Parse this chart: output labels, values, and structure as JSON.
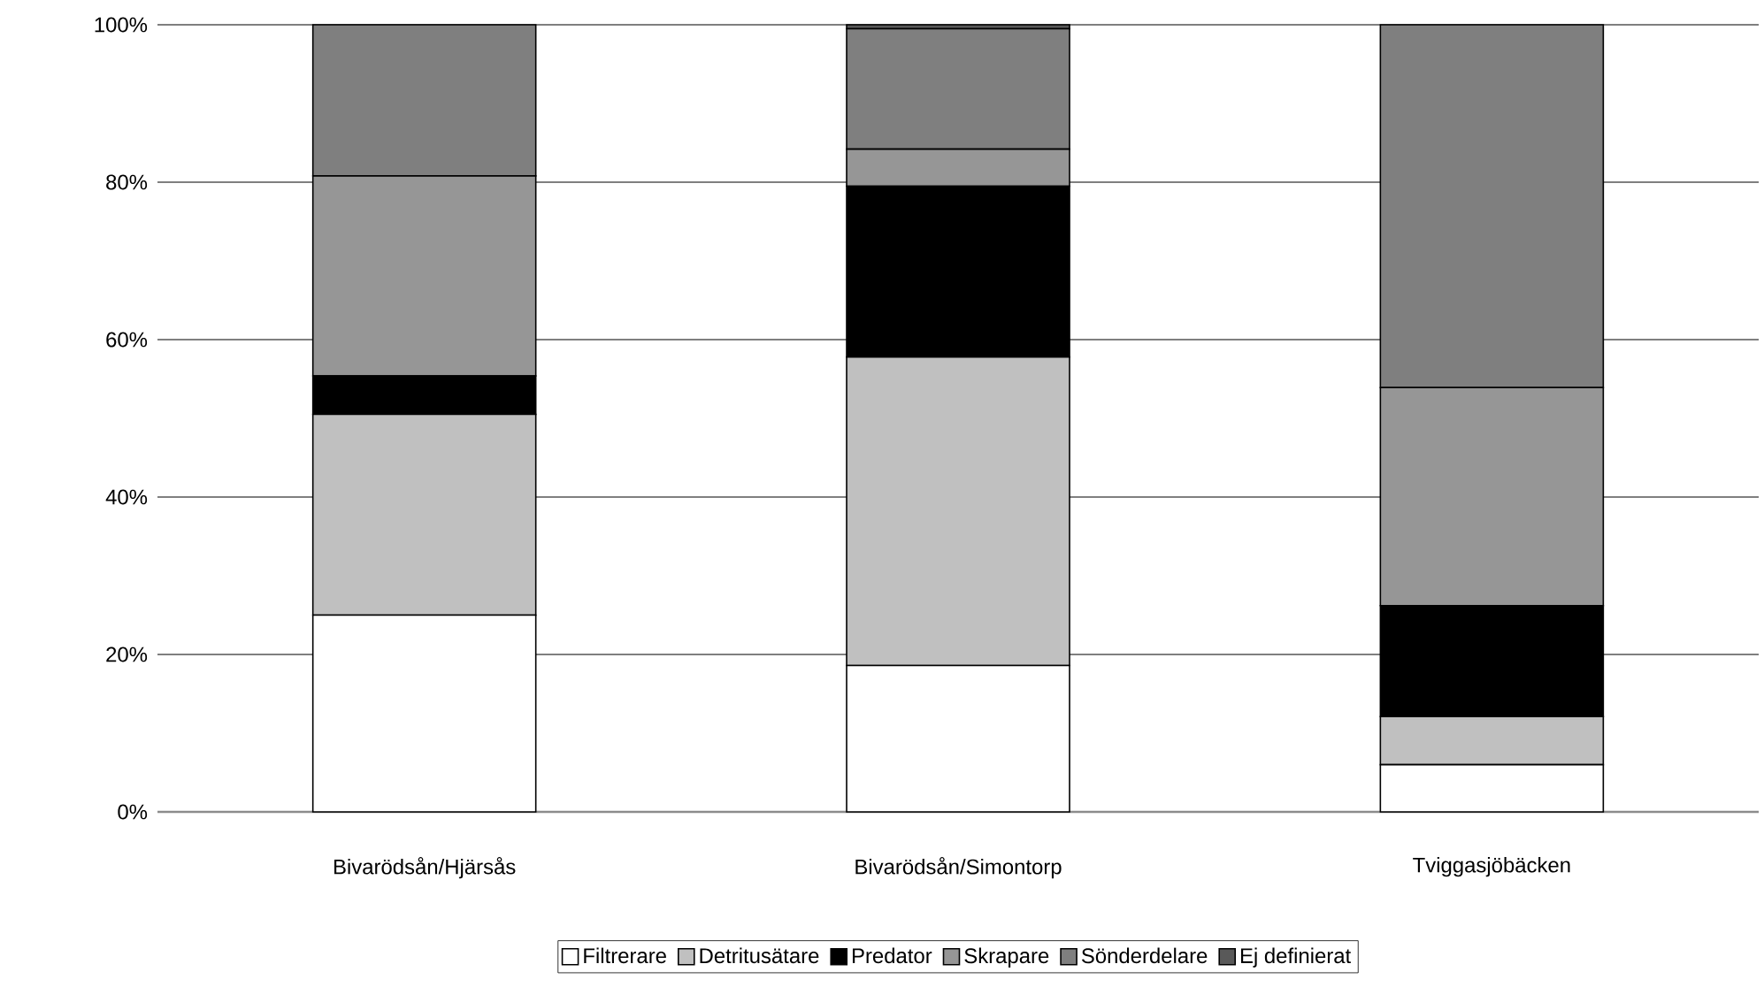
{
  "chart_data": {
    "type": "bar",
    "stacked": true,
    "categories": [
      "Bivarödsån/Hjärsås",
      "Bivarödsån/Simontorp",
      "Tviggasjöbäcken"
    ],
    "series": [
      {
        "name": "Filtrerare",
        "color": "#ffffff",
        "values": [
          25.0,
          18.6,
          6.0
        ]
      },
      {
        "name": "Detritusätare",
        "color": "#c0c0c0",
        "values": [
          25.5,
          39.2,
          6.1
        ]
      },
      {
        "name": "Predator",
        "color": "#000000",
        "values": [
          4.9,
          21.7,
          14.1
        ]
      },
      {
        "name": "Skrapare",
        "color": "#969696",
        "values": [
          25.4,
          4.7,
          27.7
        ]
      },
      {
        "name": "Sönderdelare",
        "color": "#7f7f7f",
        "values": [
          19.2,
          15.3,
          46.1
        ]
      },
      {
        "name": "Ej definierat",
        "color": "#595959",
        "values": [
          0,
          0.5,
          0
        ]
      }
    ],
    "ylim": [
      0,
      100
    ],
    "yticks": [
      {
        "value": 0,
        "label": "0%"
      },
      {
        "value": 20,
        "label": "20%"
      },
      {
        "value": 40,
        "label": "40%"
      },
      {
        "value": 60,
        "label": "60%"
      },
      {
        "value": 80,
        "label": "80%"
      },
      {
        "value": 100,
        "label": "100%"
      }
    ],
    "grid": "y",
    "legend": "bottom"
  }
}
